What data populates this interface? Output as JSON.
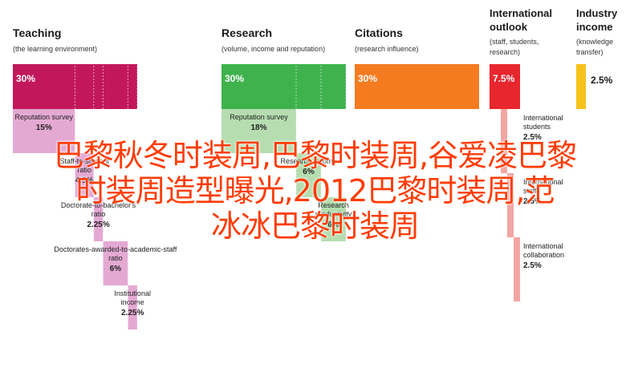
{
  "chart_data": {
    "type": "bar",
    "unit": "%",
    "categories": [
      {
        "id": "teaching",
        "title": "Teaching",
        "subtitle": "(the learning environment)",
        "color": "#c2185b",
        "light_color": "#e4a9d3",
        "total": 30,
        "total_label": "30%",
        "components": [
          {
            "label": "Reputation survey",
            "value": 15,
            "value_label": "15%"
          },
          {
            "label": "Staff-to-student ratio",
            "value": 4.5,
            "value_label": "4.5%"
          },
          {
            "label": "Doctorate-to-bachelor's ratio",
            "value": 2.25,
            "value_label": "2.25%"
          },
          {
            "label": "Doctorates-awarded-to-academic-staff ratio",
            "value": 6,
            "value_label": "6%"
          },
          {
            "label": "Institutional income",
            "value": 2.25,
            "value_label": "2.25%"
          }
        ]
      },
      {
        "id": "research",
        "title": "Research",
        "subtitle": "(volume, income and reputation)",
        "color": "#3fb24e",
        "light_color": "#b5ddb0",
        "total": 30,
        "total_label": "30%",
        "components": [
          {
            "label": "Reputation survey",
            "value": 18,
            "value_label": "18%"
          },
          {
            "label": "Research income",
            "value": 6,
            "value_label": "6%"
          },
          {
            "label": "Research productivity",
            "value": 6,
            "value_label": "6%"
          }
        ]
      },
      {
        "id": "citations",
        "title": "Citations",
        "subtitle": "(research influence)",
        "color": "#f47b20",
        "light_color": "#f47b20",
        "total": 30,
        "total_label": "30%",
        "components": []
      },
      {
        "id": "international",
        "title": "International outlook",
        "subtitle": "(staff, students, research)",
        "color": "#e8262e",
        "light_color": "#f2a6a3",
        "total": 7.5,
        "total_label": "7.5%",
        "components": [
          {
            "label": "International students",
            "value": 2.5,
            "value_label": "2.5%"
          },
          {
            "label": "International staff",
            "value": 2.5,
            "value_label": "2.5%"
          },
          {
            "label": "International collaboration",
            "value": 2.5,
            "value_label": "2.5%"
          }
        ]
      },
      {
        "id": "industry",
        "title": "Industry income",
        "subtitle": "(knowledge transfer)",
        "color": "#f7c21b",
        "light_color": "#f7c21b",
        "total": 2.5,
        "total_label": "2.5%",
        "components": []
      }
    ]
  },
  "overlay_text": "巴黎秋冬时装周,巴黎时装周,谷爱凌巴黎\n时装周造型曝光,2012巴黎时装周,范\n冰冰巴黎时装周"
}
